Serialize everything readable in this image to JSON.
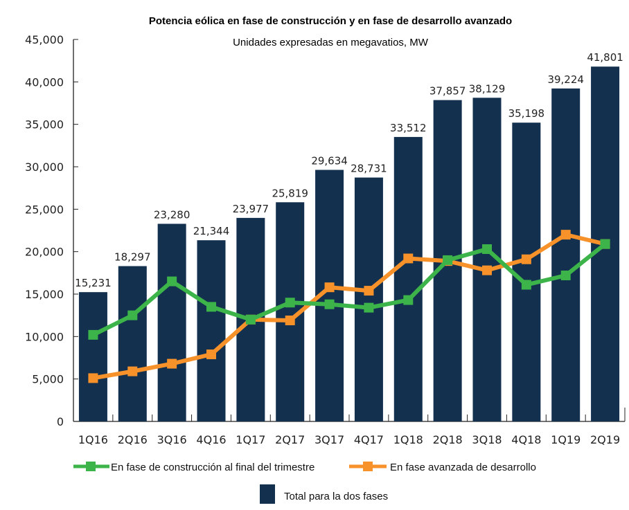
{
  "chart_data": {
    "type": "bar",
    "title": "Potencia eólica en fase de construcción y en fase de desarrollo avanzado",
    "subtitle": "Unidades expresadas en megavatios, MW",
    "xlabel": "",
    "ylabel": "",
    "ylim": [
      0,
      45000
    ],
    "grid": false,
    "yticks": [
      0,
      5000,
      10000,
      15000,
      20000,
      25000,
      30000,
      35000,
      40000,
      45000
    ],
    "ytick_labels": [
      "0",
      "5,000",
      "10,000",
      "15,000",
      "20,000",
      "25,000",
      "30,000",
      "35,000",
      "40,000",
      "45,000"
    ],
    "categories": [
      "1Q16",
      "2Q16",
      "3Q16",
      "4Q16",
      "1Q17",
      "2Q17",
      "3Q17",
      "4Q17",
      "1Q18",
      "2Q18",
      "3Q18",
      "4Q18",
      "1Q19",
      "2Q19"
    ],
    "series": [
      {
        "name": "Total para la dos fases",
        "type": "bar",
        "color": "#13304f",
        "values": [
          15231,
          18297,
          23280,
          21344,
          23977,
          25819,
          29634,
          28731,
          33512,
          37857,
          38129,
          35198,
          39224,
          41801
        ],
        "labels": [
          "15,231",
          "18,297",
          "23,280",
          "21,344",
          "23,977",
          "25,819",
          "29,634",
          "28,731",
          "33,512",
          "37,857",
          "38,129",
          "35,198",
          "39,224",
          "41,801"
        ]
      },
      {
        "name": "En fase de construcción al final del trimestre",
        "type": "line",
        "color": "#3cb44a",
        "values": [
          10200,
          12500,
          16500,
          13500,
          12000,
          14000,
          13800,
          13400,
          14300,
          19000,
          20300,
          16100,
          17200,
          20900
        ]
      },
      {
        "name": "En fase avanzada de desarrollo",
        "type": "line",
        "color": "#f7922a",
        "values": [
          5100,
          5900,
          6800,
          7900,
          12000,
          11900,
          15800,
          15400,
          19200,
          18900,
          17800,
          19100,
          22000,
          20900
        ]
      }
    ],
    "legend_position": "bottom"
  }
}
